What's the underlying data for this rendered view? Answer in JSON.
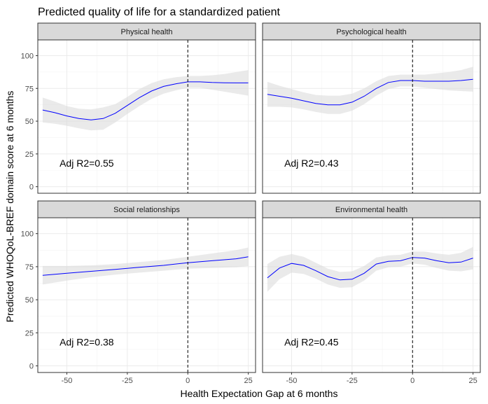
{
  "chart_data": {
    "type": "line",
    "title": "Predicted quality of life for a standardized patient",
    "xlabel": "Health Expectation Gap at 6 months",
    "ylabel": "Predicted WHOQoL-BREF domain score at 6 months",
    "xlim": [
      -62,
      28
    ],
    "ylim": [
      -5,
      112
    ],
    "x_ticks": [
      -50,
      -25,
      0,
      25
    ],
    "y_ticks": [
      0,
      25,
      50,
      75,
      100
    ],
    "reference_line_x": 0,
    "grid": true,
    "panels": [
      {
        "name": "Physical health",
        "annotation": "Adj R2=0.55",
        "x": [
          -60,
          -55,
          -50,
          -45,
          -40,
          -35,
          -30,
          -25,
          -20,
          -15,
          -10,
          -5,
          0,
          5,
          10,
          15,
          20,
          25
        ],
        "y": [
          58.5,
          56.5,
          54,
          52,
          51,
          52,
          56,
          62,
          68,
          73,
          76.5,
          78.5,
          80,
          80,
          79.5,
          79.3,
          79.2,
          79.2
        ],
        "lower": [
          49,
          48,
          46.5,
          44.5,
          43,
          43.5,
          49,
          55.5,
          61.5,
          67,
          71,
          73.5,
          75.5,
          75.5,
          74,
          72.5,
          71,
          69.5
        ],
        "upper": [
          68,
          65,
          61.5,
          59.5,
          59,
          60.5,
          63,
          68.5,
          74.5,
          79,
          82,
          83.5,
          84.5,
          84.5,
          85,
          86,
          87.5,
          89
        ]
      },
      {
        "name": "Psychological health",
        "annotation": "Adj R2=0.43",
        "x": [
          -60,
          -55,
          -50,
          -45,
          -40,
          -35,
          -30,
          -25,
          -20,
          -15,
          -10,
          -5,
          0,
          5,
          10,
          15,
          20,
          25
        ],
        "y": [
          70.5,
          69,
          67.5,
          65.5,
          63.5,
          62.5,
          62.5,
          64.5,
          69,
          75,
          79.5,
          81,
          81,
          80.5,
          80.5,
          80.5,
          81,
          82
        ],
        "lower": [
          61,
          61,
          60.5,
          59,
          57,
          55.5,
          55.5,
          58,
          63,
          69.5,
          74.5,
          76.5,
          76.5,
          75.5,
          74.5,
          73.5,
          73,
          72.5
        ],
        "upper": [
          80,
          77,
          74.5,
          72,
          70,
          69.5,
          69.5,
          71,
          75,
          80.5,
          84.5,
          85.5,
          85.5,
          85.5,
          86.5,
          87.5,
          89,
          91.5
        ]
      },
      {
        "name": "Social relationships",
        "annotation": "Adj R2=0.38",
        "x": [
          -60,
          -50,
          -40,
          -30,
          -20,
          -10,
          0,
          10,
          20,
          25
        ],
        "y": [
          68.5,
          70,
          71.5,
          73,
          74.5,
          76,
          78,
          79.5,
          81,
          82.5
        ],
        "lower": [
          61.5,
          64.5,
          67,
          69,
          70.5,
          72,
          73.5,
          74,
          74.5,
          75.5
        ],
        "upper": [
          75.5,
          75.5,
          76,
          77,
          78.5,
          80,
          82.5,
          85,
          87.5,
          89.5
        ]
      },
      {
        "name": "Environmental health",
        "annotation": "Adj R2=0.45",
        "x": [
          -60,
          -55,
          -50,
          -45,
          -40,
          -35,
          -30,
          -25,
          -20,
          -15,
          -10,
          -5,
          0,
          5,
          10,
          15,
          20,
          25
        ],
        "y": [
          66.5,
          74,
          77.5,
          76,
          72,
          67.5,
          65,
          65.5,
          70,
          77,
          79,
          79.5,
          82,
          81.5,
          79.5,
          78,
          78.5,
          81.5
        ],
        "lower": [
          56,
          65.5,
          70.5,
          69.5,
          66,
          61.5,
          59,
          59.5,
          64.5,
          72,
          74.5,
          75,
          77.5,
          76.5,
          74,
          72,
          71.5,
          73
        ],
        "upper": [
          77,
          82.5,
          84.5,
          82.5,
          78,
          73.5,
          71,
          71.5,
          75.5,
          82,
          83.5,
          84,
          86.5,
          86.5,
          85,
          84,
          85.5,
          90
        ]
      }
    ]
  }
}
